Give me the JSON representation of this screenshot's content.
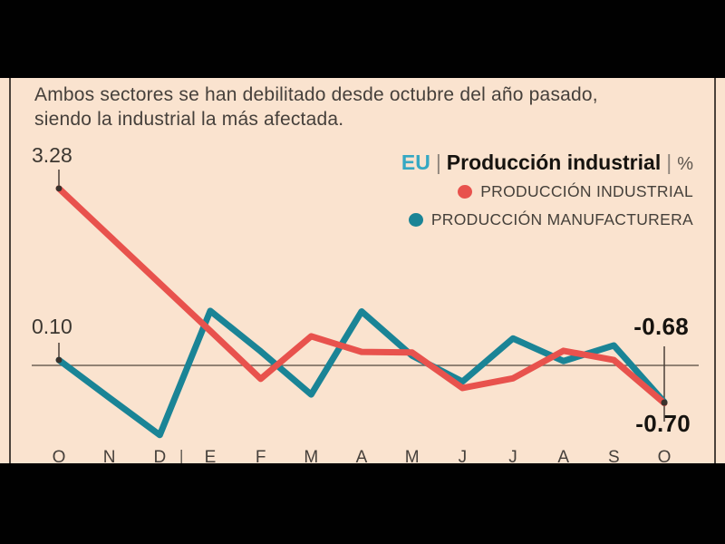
{
  "frame": {
    "description": "letterboxed video frame with black bars"
  },
  "subtitle": {
    "line1": "Ambos sectores se han debilitado desde octubre del año pasado,",
    "line2": "siendo la industrial la más afectada."
  },
  "title": {
    "region": "EU",
    "separator": "|",
    "name": "Producción industrial",
    "unit": "%"
  },
  "legend": [
    {
      "label": "PRODUCCIÓN INDUSTRIAL",
      "color": "#e8524d"
    },
    {
      "label": "PRODUCCIÓN MANUFACTURERA",
      "color": "#1a8496"
    }
  ],
  "colors": {
    "background_panel": "#fae3cf",
    "letterbox": "#010101",
    "industrial_red": "#e8524d",
    "manufacturing_teal": "#1a8496",
    "accent_cyan": "#35a8c3",
    "zero_line": "#6e6257",
    "marker": "#3a322c"
  },
  "chart_data": {
    "type": "line",
    "title": "EU | Producción industrial | %",
    "unit": "%",
    "x_tick_labels": [
      "O",
      "N",
      "D",
      "E",
      "F",
      "M",
      "A",
      "M",
      "J",
      "J",
      "A",
      "S",
      "O"
    ],
    "year_separator_after_index": 2,
    "series": [
      {
        "name": "PRODUCCIÓN INDUSTRIAL",
        "color": "#e8524d",
        "values": [
          3.28,
          2.4,
          1.52,
          0.64,
          -0.25,
          0.54,
          0.25,
          0.24,
          -0.42,
          -0.24,
          0.27,
          0.1,
          -0.7
        ]
      },
      {
        "name": "PRODUCCIÓN MANUFACTURERA",
        "color": "#1a8496",
        "values": [
          0.1,
          -0.6,
          -1.29,
          1.01,
          0.26,
          -0.54,
          1.0,
          0.18,
          -0.3,
          0.5,
          0.08,
          0.37,
          -0.68
        ]
      }
    ],
    "annotations": {
      "series1_start": "3.28",
      "series2_start": "0.10",
      "series2_end": "-0.68",
      "series1_end": "-0.70"
    },
    "ylim": [
      -1.4,
      3.4
    ],
    "zero_line": true,
    "legend_position": "top-right",
    "grid": false
  }
}
